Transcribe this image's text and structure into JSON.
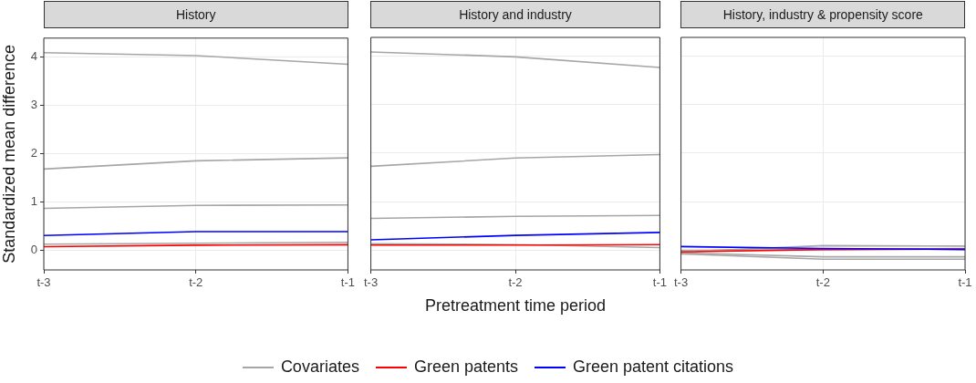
{
  "chart_data": [
    {
      "type": "line",
      "title": "History",
      "ylabel": "Standardized mean difference",
      "categories": [
        "t-3",
        "t-2",
        "t-1"
      ],
      "ylim": [
        -0.4,
        4.38
      ],
      "yticks": [
        0,
        1,
        2,
        3,
        4
      ],
      "grid": true,
      "series": [
        {
          "color": "#a6a6a6",
          "values": [
            4.08,
            4.02,
            3.84
          ]
        },
        {
          "color": "#a6a6a6",
          "values": [
            1.68,
            1.85,
            1.91
          ]
        },
        {
          "color": "#a6a6a6",
          "values": [
            0.87,
            0.93,
            0.94
          ]
        },
        {
          "color": "#a6a6a6",
          "values": [
            0.13,
            0.15,
            0.17
          ]
        },
        {
          "color": "#ff0000",
          "values": [
            0.08,
            0.11,
            0.12
          ]
        },
        {
          "color": "#0000ff",
          "values": [
            0.31,
            0.39,
            0.39
          ]
        }
      ]
    },
    {
      "type": "line",
      "title": "History and industry",
      "xlabel": "Pretreatment time period",
      "categories": [
        "t-3",
        "t-2",
        "t-1"
      ],
      "ylim": [
        -0.4,
        4.38
      ],
      "yticks": [
        0,
        1,
        2,
        3,
        4
      ],
      "grid": true,
      "legend": "bottom",
      "tick_labels": "x",
      "series": [
        {
          "name": "Covariates",
          "color": "#a6a6a6",
          "values": [
            4.08,
            3.98,
            3.76
          ]
        },
        {
          "color": "#a6a6a6",
          "values": [
            1.73,
            1.9,
            1.97
          ]
        },
        {
          "color": "#a6a6a6",
          "values": [
            0.66,
            0.7,
            0.72
          ]
        },
        {
          "color": "#a6a6a6",
          "values": [
            0.14,
            0.12,
            0.06
          ]
        },
        {
          "name": "Green patents",
          "color": "#ff0000",
          "values": [
            0.11,
            0.11,
            0.12
          ]
        },
        {
          "name": "Green patent citations",
          "color": "#0000ff",
          "values": [
            0.22,
            0.31,
            0.37
          ]
        }
      ]
    },
    {
      "type": "line",
      "title": "History, industry & propensity score",
      "categories": [
        "t-3",
        "t-2",
        "t-1"
      ],
      "ylim": [
        -0.4,
        4.38
      ],
      "yticks": [
        0,
        1,
        2,
        3,
        4
      ],
      "grid": true,
      "tick_labels": "x",
      "series": [
        {
          "color": "#a6a6a6",
          "values": [
            -0.03,
            0.1,
            0.09
          ]
        },
        {
          "color": "#a6a6a6",
          "values": [
            -0.05,
            -0.13,
            -0.13
          ]
        },
        {
          "color": "#a6a6a6",
          "values": [
            -0.07,
            -0.18,
            -0.18
          ]
        },
        {
          "color": "#a6a6a6",
          "values": [
            0.0,
            0.02,
            0.04
          ]
        },
        {
          "color": "#ff0000",
          "values": [
            -0.03,
            0.02,
            0.03
          ]
        },
        {
          "color": "#0000ff",
          "values": [
            0.08,
            0.04,
            0.02
          ]
        }
      ]
    }
  ]
}
